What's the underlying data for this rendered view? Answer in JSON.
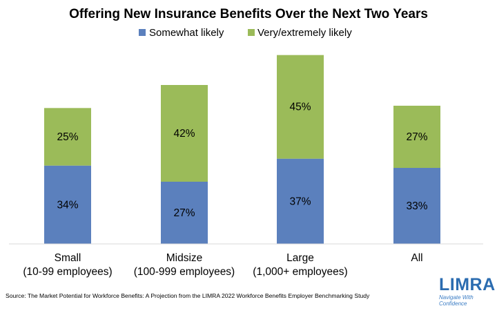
{
  "chart_data": {
    "type": "bar",
    "stacked": true,
    "title": "Offering New Insurance Benefits Over the Next Two Years",
    "categories": [
      [
        "Small",
        "(10-99 employees)"
      ],
      [
        "Midsize",
        "(100-999 employees)"
      ],
      [
        "Large",
        "(1,000+ employees)"
      ],
      [
        "All"
      ]
    ],
    "series": [
      {
        "name": "Somewhat likely",
        "values": [
          34,
          27,
          37,
          33
        ],
        "labels": [
          "34%",
          "27%",
          "37%",
          "33%"
        ],
        "color": "#5b80bd"
      },
      {
        "name": "Very/extremely likely",
        "values": [
          25,
          42,
          45,
          27
        ],
        "labels": [
          "25%",
          "42%",
          "45%",
          "27%"
        ],
        "color": "#9bbb59"
      }
    ],
    "ylim": [
      0,
      84
    ],
    "xlabel": "",
    "ylabel": "",
    "grid": false,
    "legend_position": "top-center"
  },
  "source": "Source: The Market Potential for Workforce Benefits: A Projection from the LIMRA 2022 Workforce Benefits Employer Benchmarking Study",
  "logo": {
    "name": "LIMRA",
    "tagline_line1": "Navigate With",
    "tagline_line2": "Confidence",
    "color": "#2b6cb0"
  }
}
